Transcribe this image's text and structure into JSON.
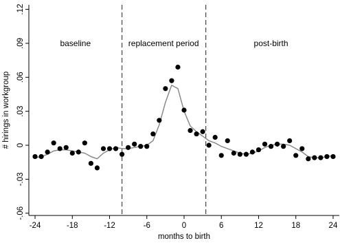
{
  "chart_data": {
    "type": "scatter",
    "xlabel": "months to birth",
    "ylabel": "# hirings in workgroup",
    "xlim": [
      -25,
      25
    ],
    "ylim": [
      -0.062,
      0.124
    ],
    "xticks": [
      -24,
      -18,
      -12,
      -6,
      0,
      6,
      12,
      18,
      24
    ],
    "xtick_labels": [
      "-24",
      "-18",
      "-12",
      "-6",
      "0",
      "6",
      "12",
      "18",
      "24"
    ],
    "yticks": [
      -0.06,
      -0.03,
      0,
      0.03,
      0.06,
      0.09,
      0.12
    ],
    "ytick_labels": [
      "-.06",
      "-.03",
      "0",
      ".03",
      ".06",
      ".09",
      ".12"
    ],
    "grid": false,
    "vlines": [
      -10,
      3.5
    ],
    "regions": [
      {
        "label": "baseline",
        "x": -17.5
      },
      {
        "label": "replacement period",
        "x": -3.3
      },
      {
        "label": "post-birth",
        "x": 14
      }
    ],
    "points": {
      "x": [
        -24,
        -23,
        -22,
        -21,
        -20,
        -19,
        -18,
        -17,
        -16,
        -15,
        -14,
        -13,
        -12,
        -11,
        -10,
        -9,
        -8,
        -7,
        -6,
        -5,
        -4,
        -3,
        -2,
        -1,
        0,
        1,
        2,
        3,
        4,
        5,
        6,
        7,
        8,
        9,
        10,
        11,
        12,
        13,
        14,
        15,
        16,
        17,
        18,
        19,
        20,
        21,
        22,
        23,
        24
      ],
      "y": [
        -0.01,
        -0.01,
        -0.006,
        0.002,
        -0.003,
        -0.002,
        -0.007,
        -0.006,
        0.002,
        -0.016,
        -0.02,
        -0.003,
        -0.003,
        -0.003,
        -0.008,
        -0.002,
        0.001,
        -0.001,
        -0.001,
        0.01,
        0.022,
        0.05,
        0.057,
        0.069,
        0.031,
        0.013,
        0.01,
        0.012,
        0.0,
        0.007,
        -0.009,
        0.004,
        -0.007,
        -0.008,
        -0.008,
        -0.006,
        -0.004,
        0.001,
        -0.001,
        0.001,
        -0.001,
        0.004,
        -0.009,
        -0.003,
        -0.012,
        -0.011,
        -0.011,
        -0.01,
        -0.01
      ]
    },
    "fit": {
      "x": [
        -24,
        -23,
        -22,
        -21,
        -20,
        -19,
        -18,
        -17,
        -16,
        -15,
        -14,
        -13,
        -12,
        -11,
        -10,
        -9,
        -8,
        -7,
        -6,
        -5,
        -4,
        -3,
        -2,
        -1,
        0,
        1,
        2,
        3,
        4,
        5,
        6,
        7,
        8,
        9,
        10,
        11,
        12,
        13,
        14,
        15,
        16,
        17,
        18,
        19,
        20,
        21,
        22,
        23,
        24
      ],
      "y": [
        -0.011,
        -0.01,
        -0.008,
        -0.005,
        -0.004,
        -0.004,
        -0.005,
        -0.006,
        -0.007,
        -0.01,
        -0.012,
        -0.007,
        -0.004,
        -0.002,
        -0.003,
        -0.003,
        -0.002,
        -0.001,
        0.0,
        0.004,
        0.018,
        0.038,
        0.053,
        0.05,
        0.03,
        0.017,
        0.012,
        0.008,
        0.004,
        0.002,
        -0.001,
        -0.003,
        -0.005,
        -0.007,
        -0.008,
        -0.007,
        -0.005,
        -0.002,
        0.0,
        0.001,
        0.001,
        0.0,
        -0.003,
        -0.006,
        -0.01,
        -0.011,
        -0.011,
        -0.01,
        -0.009
      ]
    },
    "colors": {
      "points": "#000000",
      "fit": "#8a8a8a",
      "axes": "#000000",
      "vlines": "#444444"
    }
  }
}
